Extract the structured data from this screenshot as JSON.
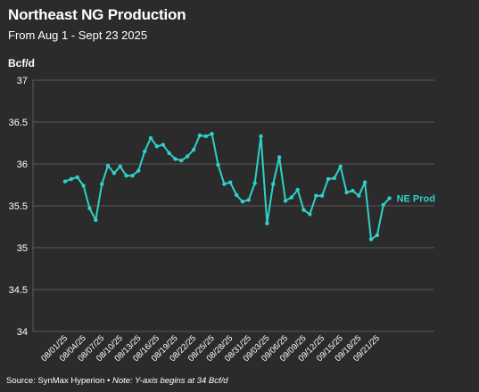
{
  "header": {
    "title": "Northeast NG Production",
    "subtitle": "From Aug 1 - Sept 23 2025"
  },
  "footer": {
    "source": "Source: SynMax Hyperion",
    "separator": " • ",
    "note": "Note: Y-axis begins at 34 Bcf/d"
  },
  "colors": {
    "background": "#2b2b2b",
    "series": "#2ed1c8",
    "grid": "#6a6a6a",
    "text": "#ffffff"
  },
  "chart_data": {
    "type": "line",
    "title": "Northeast NG Production",
    "subtitle": "From Aug 1 - Sept 23 2025",
    "ylabel": "Bcf/d",
    "xlabel": "",
    "ylim": [
      34,
      37
    ],
    "yticks": [
      34,
      34.5,
      35,
      35.5,
      36,
      36.5,
      37
    ],
    "ytick_labels": [
      "34",
      "34.5",
      "35",
      "35.5",
      "36",
      "36.5",
      "37"
    ],
    "xtick_labels": [
      "08/01/25",
      "08/04/25",
      "08/07/25",
      "08/10/25",
      "08/13/25",
      "08/16/25",
      "08/19/25",
      "08/22/25",
      "08/25/25",
      "08/28/25",
      "08/31/25",
      "09/03/25",
      "09/06/25",
      "09/09/25",
      "09/12/25",
      "09/15/25",
      "09/18/25",
      "09/21/25"
    ],
    "grid": "horizontal",
    "legend": "inline-end-label",
    "series": [
      {
        "name": "NE Prod",
        "x": [
          "08/01/25",
          "08/02/25",
          "08/03/25",
          "08/04/25",
          "08/05/25",
          "08/06/25",
          "08/07/25",
          "08/08/25",
          "08/09/25",
          "08/10/25",
          "08/11/25",
          "08/12/25",
          "08/13/25",
          "08/14/25",
          "08/15/25",
          "08/16/25",
          "08/17/25",
          "08/18/25",
          "08/19/25",
          "08/20/25",
          "08/21/25",
          "08/22/25",
          "08/23/25",
          "08/24/25",
          "08/25/25",
          "08/26/25",
          "08/27/25",
          "08/28/25",
          "08/29/25",
          "08/30/25",
          "08/31/25",
          "09/01/25",
          "09/02/25",
          "09/03/25",
          "09/04/25",
          "09/05/25",
          "09/06/25",
          "09/07/25",
          "09/08/25",
          "09/09/25",
          "09/10/25",
          "09/11/25",
          "09/12/25",
          "09/13/25",
          "09/14/25",
          "09/15/25",
          "09/16/25",
          "09/17/25",
          "09/18/25",
          "09/19/25",
          "09/20/25",
          "09/21/25",
          "09/22/25",
          "09/23/25"
        ],
        "values": [
          35.79,
          35.82,
          35.84,
          35.74,
          35.47,
          35.33,
          35.76,
          35.98,
          35.89,
          35.97,
          35.86,
          35.86,
          35.92,
          36.15,
          36.31,
          36.21,
          36.23,
          36.13,
          36.06,
          36.04,
          36.09,
          36.17,
          36.34,
          36.33,
          36.36,
          35.99,
          35.76,
          35.78,
          35.63,
          35.55,
          35.57,
          35.77,
          36.33,
          35.29,
          35.76,
          36.08,
          35.56,
          35.6,
          35.69,
          35.45,
          35.4,
          35.62,
          35.62,
          35.82,
          35.83,
          35.97,
          35.66,
          35.68,
          35.62,
          35.78,
          35.1,
          35.15,
          35.51,
          35.59
        ]
      }
    ]
  }
}
